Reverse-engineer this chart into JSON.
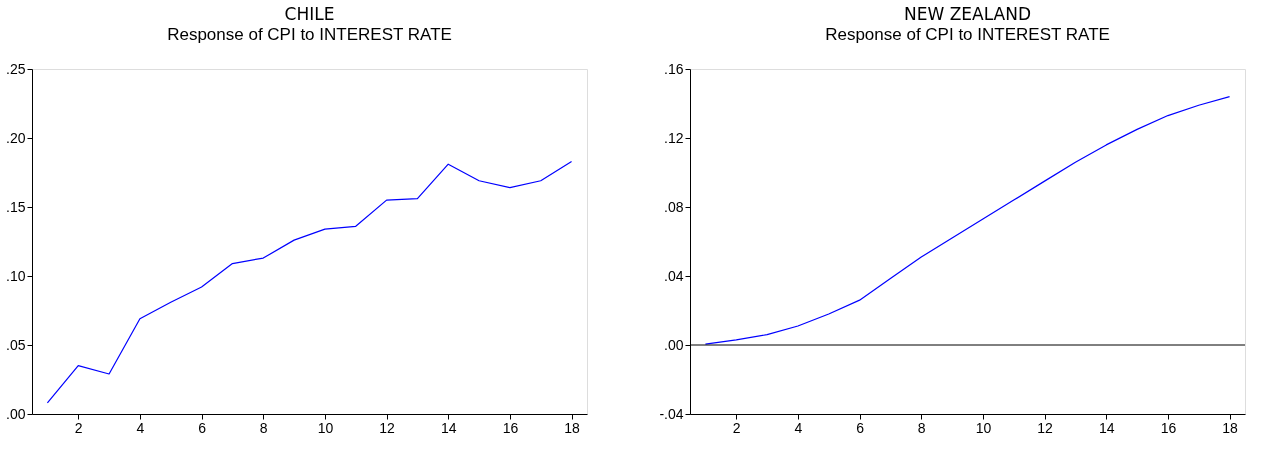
{
  "chart_data": [
    {
      "type": "line",
      "title": "CHILE",
      "subtitle": "Response of CPI to INTEREST RATE",
      "x": [
        1,
        2,
        3,
        4,
        5,
        6,
        7,
        8,
        9,
        10,
        11,
        12,
        13,
        14,
        15,
        16,
        17,
        18
      ],
      "xlim": [
        0.5,
        18.5
      ],
      "xticks": [
        2,
        4,
        6,
        8,
        10,
        12,
        14,
        16,
        18
      ],
      "ylim": [
        0,
        0.25
      ],
      "yticks": [
        {
          "value": 0,
          "label": ".00"
        },
        {
          "value": 0.05,
          "label": ".05"
        },
        {
          "value": 0.1,
          "label": ".10"
        },
        {
          "value": 0.15,
          "label": ".15"
        },
        {
          "value": 0.2,
          "label": ".20"
        },
        {
          "value": 0.25,
          "label": ".25"
        }
      ],
      "grid": false,
      "line_style": "solid",
      "series": [
        {
          "color": "#0000ff",
          "values": [
            0.008,
            0.035,
            0.029,
            0.069,
            0.081,
            0.092,
            0.109,
            0.113,
            0.126,
            0.134,
            0.136,
            0.155,
            0.156,
            0.181,
            0.169,
            0.164,
            0.169,
            0.183
          ]
        }
      ]
    },
    {
      "type": "line",
      "title": "NEW ZEALAND",
      "subtitle": "Response of CPI to INTEREST RATE",
      "x": [
        1,
        2,
        3,
        4,
        5,
        6,
        7,
        8,
        9,
        10,
        11,
        12,
        13,
        14,
        15,
        16,
        17,
        18
      ],
      "xlim": [
        0.5,
        18.5
      ],
      "xticks": [
        2,
        4,
        6,
        8,
        10,
        12,
        14,
        16,
        18
      ],
      "ylim": [
        -0.04,
        0.16
      ],
      "yticks": [
        {
          "value": -0.04,
          "label": "-.04"
        },
        {
          "value": 0,
          "label": ".00"
        },
        {
          "value": 0.04,
          "label": ".04"
        },
        {
          "value": 0.08,
          "label": ".08"
        },
        {
          "value": 0.12,
          "label": ".12"
        },
        {
          "value": 0.16,
          "label": ".16"
        }
      ],
      "grid": false,
      "line_style": "solid",
      "ref_lines": [
        {
          "axis": "y",
          "value": 0,
          "color": "#000000"
        }
      ],
      "series": [
        {
          "color": "#0000ff",
          "values": [
            0.0005,
            0.003,
            0.006,
            0.011,
            0.018,
            0.026,
            0.0385,
            0.051,
            0.062,
            0.073,
            0.084,
            0.095,
            0.106,
            0.116,
            0.125,
            0.133,
            0.139,
            0.144
          ]
        }
      ]
    }
  ]
}
